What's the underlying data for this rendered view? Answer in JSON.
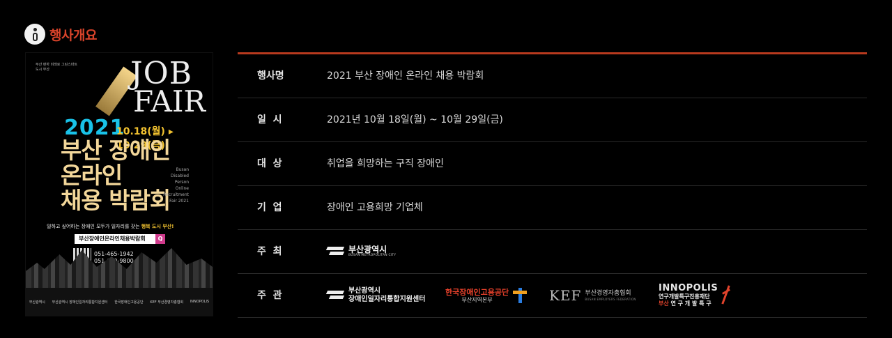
{
  "section": {
    "title": "행사개요",
    "icon": "info-icon"
  },
  "poster": {
    "brand": "부산 편하 미래로 그린스마트 도시 부산",
    "job": "JOB",
    "fair": "FAIR",
    "year": "2021",
    "dates": "10.18(월) ▸ 10.29(금)",
    "title_line1": "부산 장애인",
    "title_line2": "온라인",
    "title_line3": "채용 박람회",
    "english": "Busan Disabled Person Online Recruitment Fair 2021",
    "slogan_prefix": "일하고 싶어하는 장애인 모두가 일자리를 갖는 ",
    "slogan_highlight": "행복 도시 부산!",
    "search_label": "부산장애인온라인채용박람회",
    "phone1": "051-465-1942",
    "phone2": "051-640-9800",
    "footer1": "부산광역시",
    "footer2": "부산광역시 장애인일자리통합지원센터",
    "footer3": "한국장애인고용공단",
    "footer4": "KEF 부산경영자총협회",
    "footer5": "INNOPOLIS"
  },
  "rows": [
    {
      "label": "행사명",
      "value": "2021 부산 장애인 온라인 채용 박람회"
    },
    {
      "label": "일  시",
      "value": "2021년 10월 18일(월) ~ 10월 29일(금)"
    },
    {
      "label": "대  상",
      "value": "취업을 희망하는 구직 장애인"
    },
    {
      "label": "기  업",
      "value": "장애인 고용희망 기업체"
    },
    {
      "label": "주  최",
      "value": ""
    },
    {
      "label": "주  관",
      "value": ""
    }
  ],
  "host_logo": {
    "name": "부산광역시",
    "sub": "BUSAN METROPOLITAN CITY"
  },
  "organizer_logos": {
    "busan_center": {
      "line1": "부산광역시",
      "line2": "장애인일자리통합지원센터"
    },
    "kead": {
      "line1": "한국장애인고용공단",
      "line2": "부산지역본부"
    },
    "kef": {
      "mark": "KEF",
      "line1": "부산경영자총협회",
      "line2": "BUSAN EMPLOYERS FEDERATION"
    },
    "innopolis": {
      "title": "INNOPOLIS",
      "line2": "연구개발특구진흥재단",
      "line3_red": "부산",
      "line3": " 연 구 개 발 특 구"
    }
  },
  "colors": {
    "accent": "#d8432a",
    "rule": "#b83a1e",
    "background": "#000000"
  }
}
